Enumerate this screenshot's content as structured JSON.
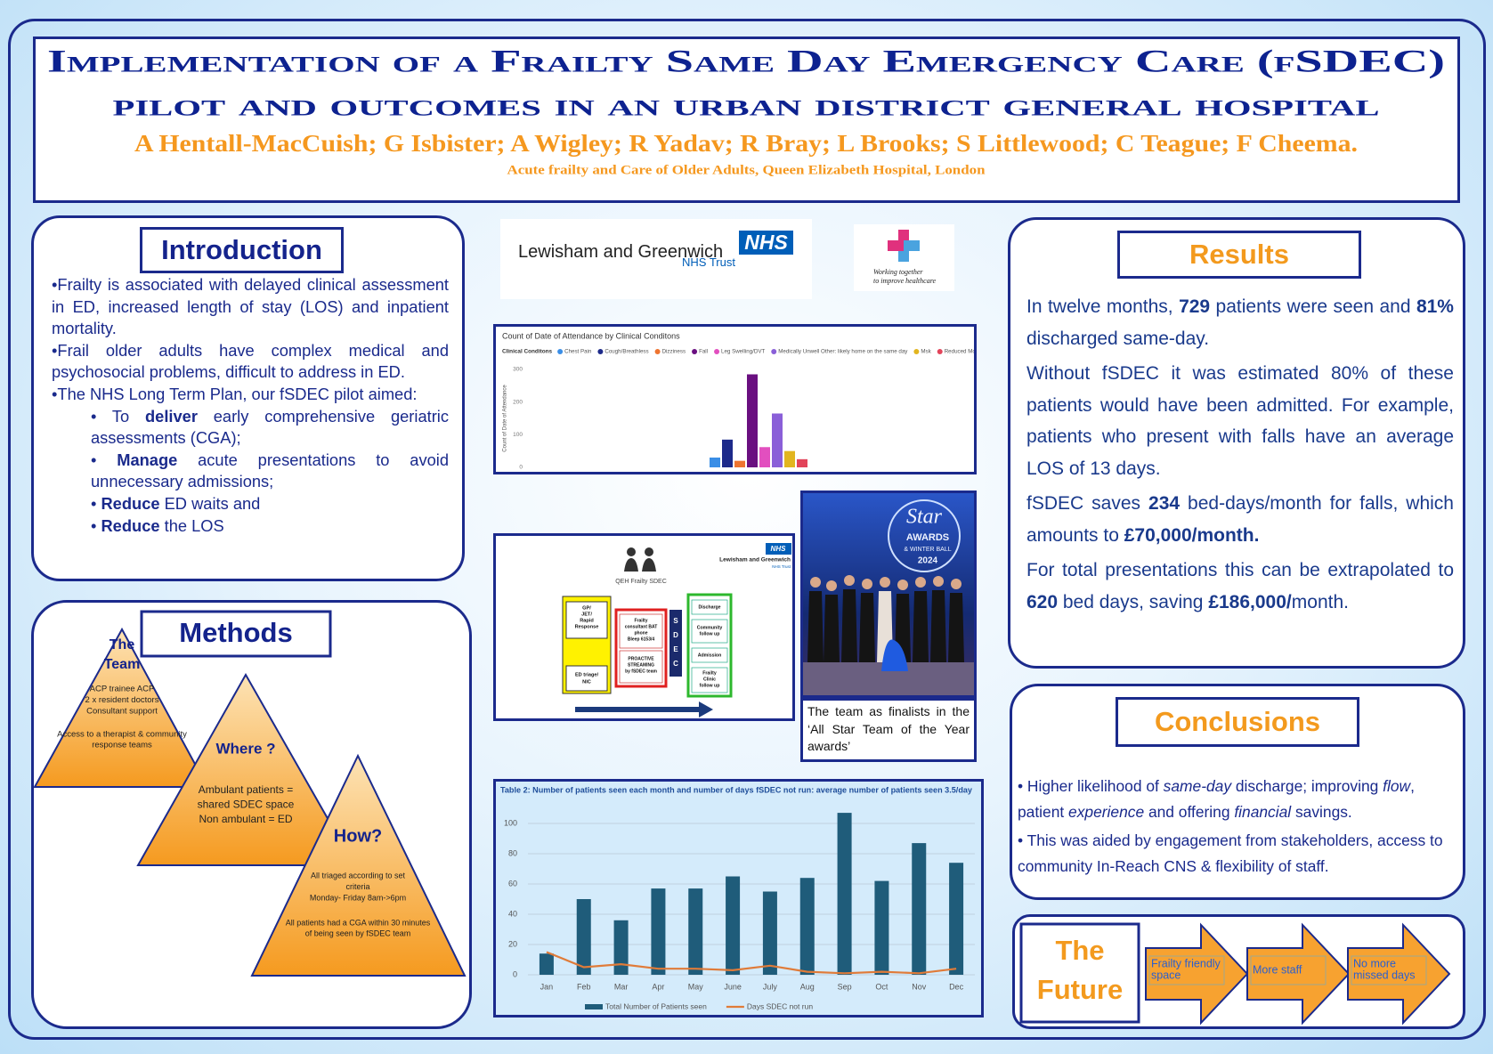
{
  "header": {
    "title_lines": [
      "Implementation of a Frailty Same Day Emergency Care (fSDEC)",
      "pilot and outcomes in an urban district general hospital"
    ],
    "authors": "A Hentall-MacCuish; G Isbister; A Wigley; R Yadav; R Bray; L Brooks; S Littlewood; C Teague; F Cheema.",
    "affiliation": "Acute frailty and Care of Older Adults, Queen Elizabeth Hospital, London"
  },
  "intro": {
    "heading": "Introduction",
    "paragraphs": [
      [
        "•Frailty is associated with delayed clinical assessment in ED, increased length of stay (LOS) and inpatient mortality."
      ],
      [
        "•Frail older adults have complex medical and psychosocial problems, difficult to address in ED."
      ],
      [
        "•The NHS Long Term Plan, our fSDEC pilot aimed:"
      ]
    ],
    "aims": [
      [
        "• To ",
        {
          "bold": "deliver"
        },
        " early comprehensive geriatric assessments (CGA);"
      ],
      [
        "• ",
        {
          "bold": "Manage"
        },
        " acute presentations to avoid unnecessary admissions;"
      ],
      [
        "• ",
        {
          "bold": "Reduce"
        },
        " ED waits and"
      ],
      [
        "• ",
        {
          "bold": "Reduce"
        },
        " the LOS"
      ]
    ]
  },
  "methods": {
    "heading": "Methods",
    "team": {
      "title_lines": [
        "The",
        "Team"
      ],
      "lines": [
        "ACP trainee ACP",
        "2 x resident doctors",
        "Consultant support",
        "Access to a therapist & community",
        "response teams"
      ]
    },
    "where": {
      "title": "Where ?",
      "lines": [
        "Ambulant patients =",
        "shared SDEC space",
        "Non ambulant = ED"
      ]
    },
    "how": {
      "title": "How?",
      "lines": [
        "All triaged according to set",
        "criteria",
        "Monday- Friday 8am->6pm",
        "All patients had a CGA within 30 minutes",
        "of being seen by fSDEC team"
      ]
    }
  },
  "logos": {
    "trust": {
      "name": "Lewisham and Greenwich",
      "nhs": "NHS",
      "sub": "NHS Trust"
    },
    "motto_lines": [
      "Working together",
      "to improve healthcare"
    ]
  },
  "pathway": {
    "title": "QEH Frailty SDEC",
    "trust": {
      "name": "Lewisham and Greenwich",
      "nhs": "NHS",
      "sub": "NHS Trust"
    },
    "referral": [
      [
        "GP/",
        "JET/",
        "Rapid",
        "Response"
      ],
      [
        "ED triage/",
        "NIC"
      ]
    ],
    "streaming": [
      [
        "Frailty",
        "consultant BAT",
        "phone",
        "Bleep 6153/4"
      ],
      [
        "PROACTIVE",
        "STREAMING",
        "by fSDEC team"
      ]
    ],
    "unit": [
      "S",
      "D",
      "E",
      "C"
    ],
    "outcomes": [
      [
        "Discharge"
      ],
      [
        "Community",
        "follow up"
      ],
      [
        "Admission"
      ],
      [
        "Frailty",
        "Clinic",
        "follow up"
      ]
    ]
  },
  "photo": {
    "banner_lines": [
      "Star",
      "AWARDS",
      "& WINTER BALL",
      "2024"
    ],
    "caption": "The team as finalists in the ‘All Star Team of the Year awards’"
  },
  "results": {
    "heading": "Results",
    "paragraphs": [
      [
        "In twelve months, ",
        {
          "bold": "729"
        },
        " patients were seen and ",
        {
          "bold": "81%"
        },
        " discharged same-day."
      ],
      [
        "Without fSDEC it was estimated 80% of these patients would have been admitted. For example, patients who present with falls have an average LOS of 13 days."
      ],
      [
        "fSDEC saves ",
        {
          "bold": "234"
        },
        " bed-days/month for falls, which amounts to ",
        {
          "bold": "£70,000/month."
        }
      ],
      [
        "For total presentations this can be extrapolated to ",
        {
          "bold": "620"
        },
        " bed days, saving ",
        {
          "bold": "£186,000/"
        },
        "month."
      ]
    ]
  },
  "conclusions": {
    "heading": "Conclusions",
    "paragraphs": [
      [
        "• Higher likelihood of ",
        {
          "italic": "same-day"
        },
        " discharge; improving ",
        {
          "italic": "flow"
        },
        ", patient ",
        {
          "italic": "experience"
        },
        " and offering ",
        {
          "italic": "financial"
        },
        " savings."
      ],
      [
        "• This was aided by engagement from stakeholders, access to community In-Reach CNS & flexibility of staff."
      ]
    ]
  },
  "future": {
    "heading_lines": [
      "The",
      "Future"
    ],
    "steps": [
      [
        "Frailty friendly",
        "space"
      ],
      [
        "More staff"
      ],
      [
        "No more",
        "missed days"
      ]
    ]
  },
  "chart_data": [
    {
      "type": "bar",
      "title": "Count of Date of Attendance by Clinical Conditons",
      "legend_title": "Clinical Conditons",
      "y_label": "Count of Date of Attendance",
      "categories": [
        "Chest Pain",
        "Cough/Breathless",
        "Dizziness",
        "Fall",
        "Leg Swelling/DVT",
        "Medically Unwell Other: likely home on the same day",
        "Msk",
        "Reduced Mobility/Weakness"
      ],
      "values": [
        30,
        85,
        20,
        285,
        62,
        165,
        50,
        25
      ],
      "colors": [
        "#3a8ee6",
        "#1d2a8a",
        "#ee7430",
        "#6a0f80",
        "#e24fbf",
        "#8a5fd8",
        "#e2b51f",
        "#e2445a"
      ],
      "ylim": [
        0,
        300
      ],
      "yticks": [
        0,
        100,
        200,
        300
      ],
      "grid": false
    },
    {
      "type": "combo",
      "title": "Table 2: Number of patients seen each month and number of days fSDEC not run: average number of patients seen 3.5/day",
      "categories": [
        "Jan",
        "Feb",
        "Mar",
        "Apr",
        "May",
        "June",
        "July",
        "Aug",
        "Sep",
        "Oct",
        "Nov",
        "Dec"
      ],
      "series": [
        {
          "name": "Total Number of Patients seen",
          "color": "#1f5c7a",
          "type": "bar",
          "values": [
            14,
            50,
            36,
            57,
            57,
            65,
            55,
            64,
            107,
            62,
            87,
            74
          ]
        },
        {
          "name": "Days SDEC not run",
          "color": "#e07b39",
          "type": "line",
          "values": [
            15,
            5,
            7,
            4,
            4,
            3,
            6,
            2,
            1,
            2,
            1,
            4
          ]
        }
      ],
      "ylim": [
        0,
        110
      ],
      "yticks": [
        0,
        20,
        40,
        60,
        80,
        100
      ],
      "grid": true
    }
  ]
}
